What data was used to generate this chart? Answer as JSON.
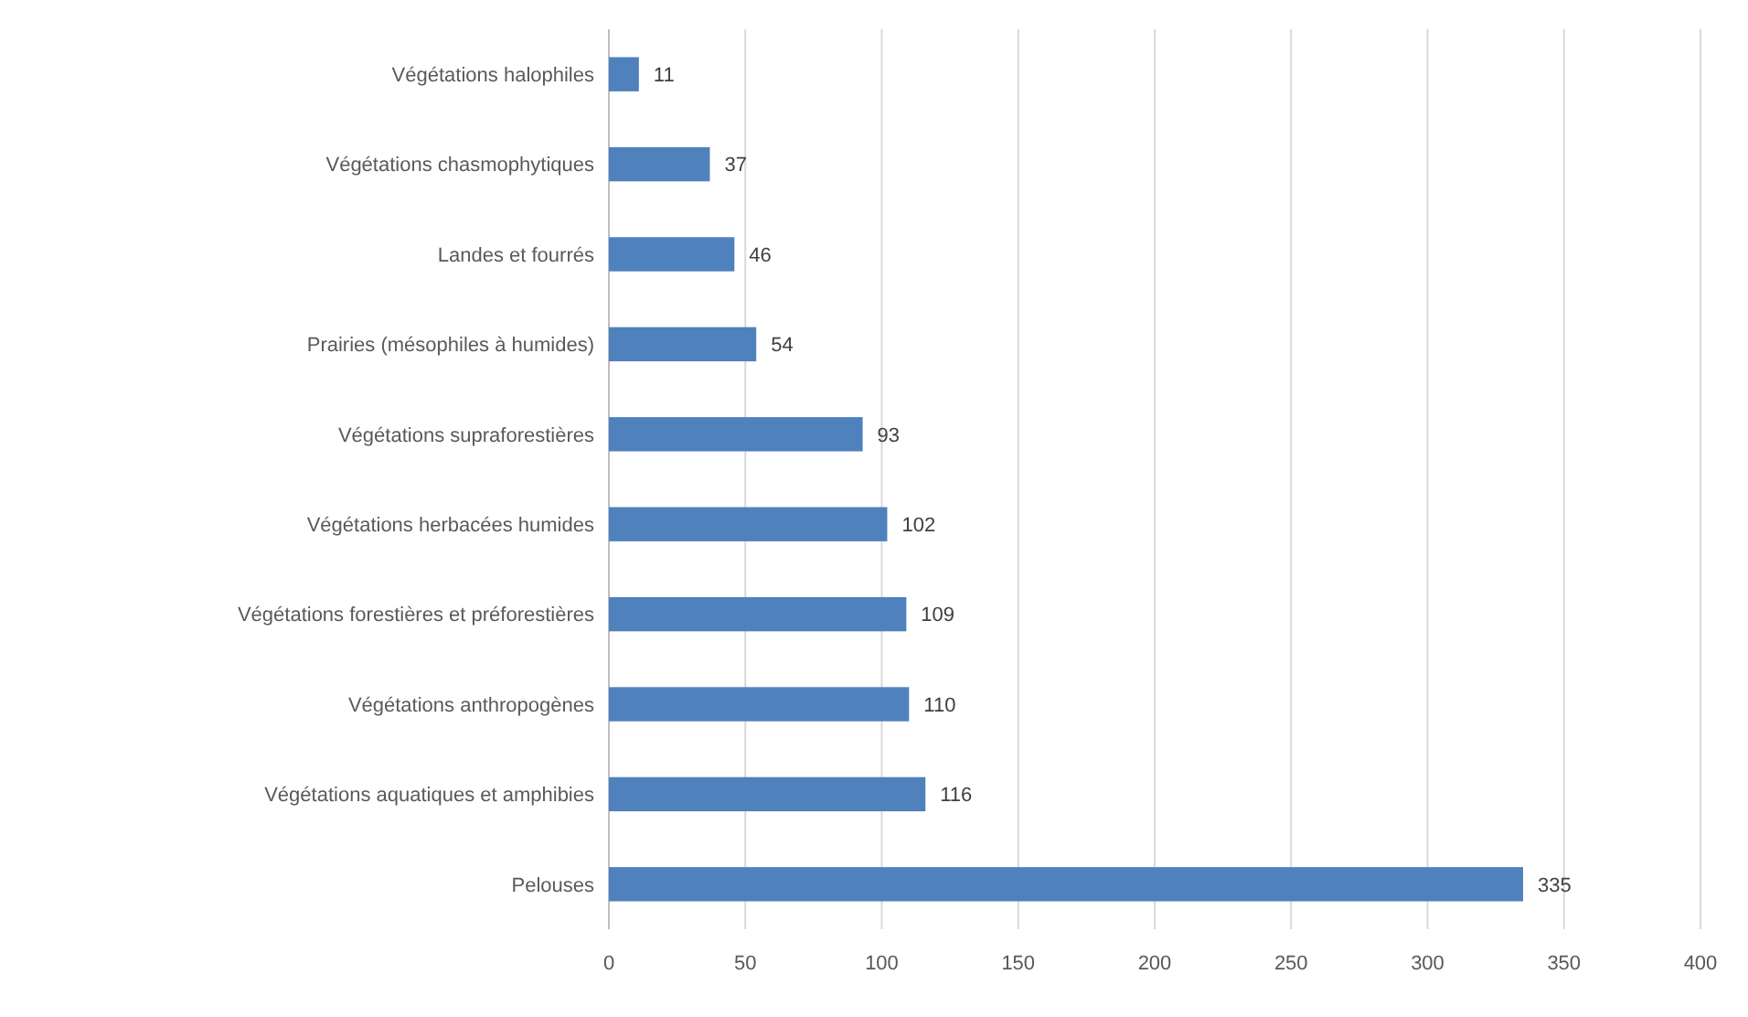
{
  "chart_data": {
    "type": "bar",
    "orientation": "horizontal",
    "categories": [
      "Végétations halophiles",
      "Végétations chasmophytiques",
      "Landes et fourrés",
      "Prairies (mésophiles à humides)",
      "Végétations supraforestières",
      "Végétations herbacées humides",
      "Végétations forestières et préforestières",
      "Végétations anthropogènes",
      "Végétations aquatiques et amphibies",
      "Pelouses"
    ],
    "values": [
      11,
      37,
      46,
      54,
      93,
      102,
      109,
      110,
      116,
      335
    ],
    "color": "#4f81bd",
    "xlim": [
      0,
      400
    ],
    "xticks": [
      0,
      50,
      100,
      150,
      200,
      250,
      300,
      350,
      400
    ],
    "grid": "x",
    "data_labels": true
  }
}
